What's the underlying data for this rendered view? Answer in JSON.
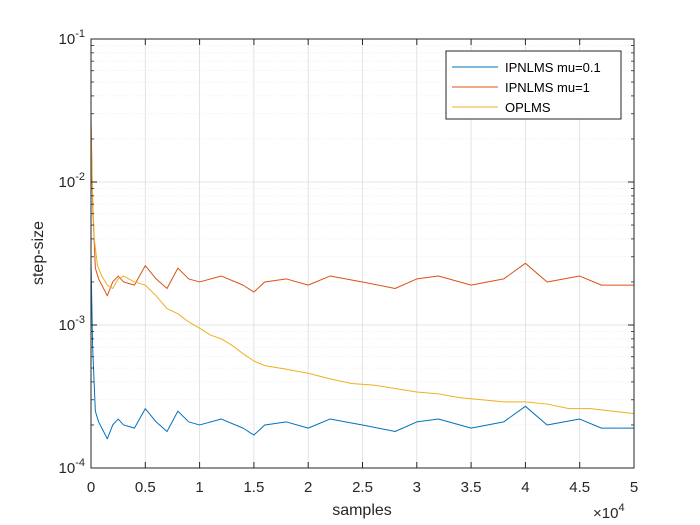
{
  "chart_data": {
    "type": "line",
    "xlabel": "samples",
    "ylabel": "step-size",
    "x_scale_label": {
      "base": "×10",
      "exponent": "4"
    },
    "xlim": [
      0,
      50000
    ],
    "ylim": [
      0.0001,
      0.1
    ],
    "y_scale": "log",
    "grid": true,
    "minor_grid": true,
    "legend_position": "top-right",
    "x_ticks": [
      {
        "value": 0,
        "label": "0"
      },
      {
        "value": 5000,
        "label": "0.5"
      },
      {
        "value": 10000,
        "label": "1"
      },
      {
        "value": 15000,
        "label": "1.5"
      },
      {
        "value": 20000,
        "label": "2"
      },
      {
        "value": 25000,
        "label": "2.5"
      },
      {
        "value": 30000,
        "label": "3"
      },
      {
        "value": 35000,
        "label": "3.5"
      },
      {
        "value": 40000,
        "label": "4"
      },
      {
        "value": 45000,
        "label": "4.5"
      },
      {
        "value": 50000,
        "label": "5"
      }
    ],
    "y_ticks": [
      {
        "value": 0.0001,
        "base": "10",
        "exponent": "-4"
      },
      {
        "value": 0.001,
        "base": "10",
        "exponent": "-3"
      },
      {
        "value": 0.01,
        "base": "10",
        "exponent": "-2"
      },
      {
        "value": 0.1,
        "base": "10",
        "exponent": "-1"
      }
    ],
    "series": [
      {
        "name": "IPNLMS mu=0.1",
        "color": "#0072BD",
        "x": [
          0,
          150,
          400,
          700,
          1000,
          1500,
          2000,
          2500,
          3000,
          4000,
          5000,
          6000,
          7000,
          8000,
          9000,
          10000,
          12000,
          14000,
          15000,
          16000,
          18000,
          20000,
          22000,
          25000,
          28000,
          30000,
          32000,
          35000,
          38000,
          40000,
          42000,
          45000,
          47000,
          50000
        ],
        "y": [
          0.0028,
          0.0007,
          0.00025,
          0.00021,
          0.00019,
          0.00016,
          0.0002,
          0.00022,
          0.0002,
          0.00019,
          0.00026,
          0.00021,
          0.00018,
          0.00025,
          0.00021,
          0.0002,
          0.00022,
          0.00019,
          0.00017,
          0.0002,
          0.00021,
          0.00019,
          0.00022,
          0.0002,
          0.00018,
          0.00021,
          0.00022,
          0.00019,
          0.00021,
          0.00027,
          0.0002,
          0.00022,
          0.00019,
          0.00019
        ]
      },
      {
        "name": "IPNLMS mu=1",
        "color": "#D95319",
        "x": [
          0,
          150,
          400,
          700,
          1000,
          1500,
          2000,
          2500,
          3000,
          4000,
          5000,
          6000,
          7000,
          8000,
          9000,
          10000,
          12000,
          14000,
          15000,
          16000,
          18000,
          20000,
          22000,
          25000,
          28000,
          30000,
          32000,
          35000,
          38000,
          40000,
          42000,
          45000,
          47000,
          50000
        ],
        "y": [
          0.028,
          0.007,
          0.0025,
          0.0021,
          0.0019,
          0.0016,
          0.002,
          0.0022,
          0.002,
          0.0019,
          0.0026,
          0.0021,
          0.0018,
          0.0025,
          0.0021,
          0.002,
          0.0022,
          0.0019,
          0.0017,
          0.002,
          0.0021,
          0.0019,
          0.0022,
          0.002,
          0.0018,
          0.0021,
          0.0022,
          0.0019,
          0.0021,
          0.0027,
          0.002,
          0.0022,
          0.0019,
          0.0019
        ]
      },
      {
        "name": "OPLMS",
        "color": "#EDB120",
        "x": [
          0,
          100,
          300,
          600,
          1000,
          1500,
          2000,
          2500,
          3000,
          4000,
          5000,
          6000,
          7000,
          8000,
          9000,
          10000,
          11000,
          12000,
          13000,
          14000,
          15000,
          16000,
          18000,
          20000,
          22000,
          24000,
          26000,
          28000,
          30000,
          32000,
          34000,
          36000,
          38000,
          40000,
          42000,
          44000,
          46000,
          48000,
          50000
        ],
        "y": [
          0.028,
          0.01,
          0.004,
          0.0026,
          0.0022,
          0.0019,
          0.0018,
          0.0021,
          0.0022,
          0.002,
          0.0019,
          0.0016,
          0.0013,
          0.0012,
          0.00105,
          0.00095,
          0.00085,
          0.0008,
          0.00072,
          0.00063,
          0.00056,
          0.00052,
          0.00049,
          0.00046,
          0.00042,
          0.00039,
          0.00038,
          0.00036,
          0.00034,
          0.00033,
          0.00031,
          0.0003,
          0.00029,
          0.00029,
          0.00028,
          0.00026,
          0.00026,
          0.00025,
          0.00024
        ]
      }
    ]
  }
}
